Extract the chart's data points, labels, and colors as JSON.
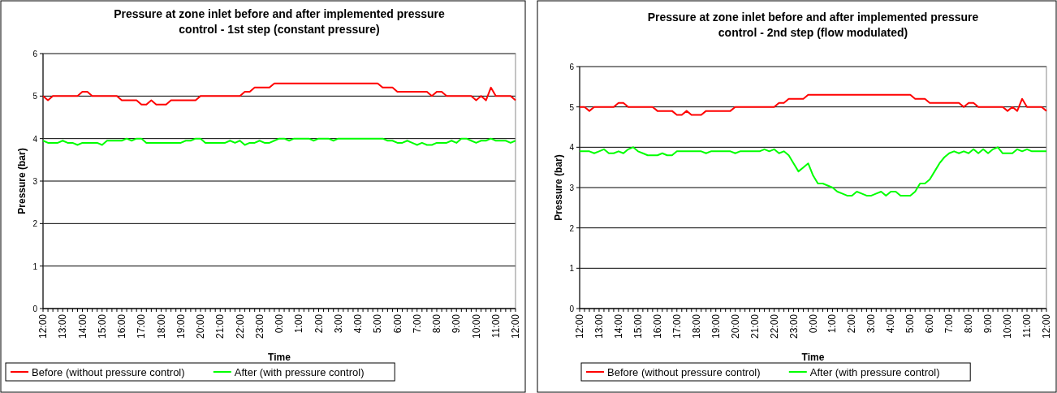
{
  "chart_data": [
    {
      "type": "line",
      "title": "Pressure at zone inlet before and after implemented pressure control - 1st step (constant pressure)",
      "xlabel": "Time",
      "ylabel": "Pressure (bar)",
      "categories": [
        "12:00",
        null,
        null,
        null,
        "13:00",
        null,
        null,
        null,
        "14:00",
        null,
        null,
        null,
        "15:00",
        null,
        null,
        null,
        "16:00",
        null,
        null,
        null,
        "17:00",
        null,
        null,
        null,
        "18:00",
        null,
        null,
        null,
        "19:00",
        null,
        null,
        null,
        "20:00",
        null,
        null,
        null,
        "21:00",
        null,
        null,
        null,
        "22:00",
        null,
        null,
        null,
        "23:00",
        null,
        null,
        null,
        "0:00",
        null,
        null,
        null,
        "1:00",
        null,
        null,
        null,
        "2:00",
        null,
        null,
        null,
        "3:00",
        null,
        null,
        null,
        "4:00",
        null,
        null,
        null,
        "5:00",
        null,
        null,
        null,
        "6:00",
        null,
        null,
        null,
        "7:00",
        null,
        null,
        null,
        "8:00",
        null,
        null,
        null,
        "9:00",
        null,
        null,
        null,
        "10:00",
        null,
        null,
        null,
        "11:00",
        null,
        null,
        null,
        "12:00"
      ],
      "series": [
        {
          "name": "Before (without pressure control)",
          "color": "#ff0000",
          "values": [
            5.0,
            4.9,
            5.0,
            5.0,
            5.0,
            5.0,
            5.0,
            5.0,
            5.1,
            5.1,
            5.0,
            5.0,
            5.0,
            5.0,
            5.0,
            5.0,
            4.9,
            4.9,
            4.9,
            4.9,
            4.8,
            4.8,
            4.9,
            4.8,
            4.8,
            4.8,
            4.9,
            4.9,
            4.9,
            4.9,
            4.9,
            4.9,
            5.0,
            5.0,
            5.0,
            5.0,
            5.0,
            5.0,
            5.0,
            5.0,
            5.0,
            5.1,
            5.1,
            5.2,
            5.2,
            5.2,
            5.2,
            5.3,
            5.3,
            5.3,
            5.3,
            5.3,
            5.3,
            5.3,
            5.3,
            5.3,
            5.3,
            5.3,
            5.3,
            5.3,
            5.3,
            5.3,
            5.3,
            5.3,
            5.3,
            5.3,
            5.3,
            5.3,
            5.3,
            5.2,
            5.2,
            5.2,
            5.1,
            5.1,
            5.1,
            5.1,
            5.1,
            5.1,
            5.1,
            5.0,
            5.1,
            5.1,
            5.0,
            5.0,
            5.0,
            5.0,
            5.0,
            5.0,
            4.9,
            5.0,
            4.9,
            5.2,
            5.0,
            5.0,
            5.0,
            5.0,
            4.9
          ]
        },
        {
          "name": "After (with pressure control)",
          "color": "#00ff00",
          "values": [
            3.95,
            3.9,
            3.9,
            3.9,
            3.95,
            3.9,
            3.9,
            3.85,
            3.9,
            3.9,
            3.9,
            3.9,
            3.85,
            3.95,
            3.95,
            3.95,
            3.95,
            4.0,
            3.95,
            4.0,
            4.0,
            3.9,
            3.9,
            3.9,
            3.9,
            3.9,
            3.9,
            3.9,
            3.9,
            3.95,
            3.95,
            4.0,
            4.0,
            3.9,
            3.9,
            3.9,
            3.9,
            3.9,
            3.95,
            3.9,
            3.95,
            3.85,
            3.9,
            3.9,
            3.95,
            3.9,
            3.9,
            3.95,
            4.0,
            4.0,
            3.95,
            4.0,
            4.0,
            4.0,
            4.0,
            3.95,
            4.0,
            4.0,
            4.0,
            3.95,
            4.0,
            4.0,
            4.0,
            4.0,
            4.0,
            4.0,
            4.0,
            4.0,
            4.0,
            4.0,
            3.95,
            3.95,
            3.9,
            3.9,
            3.95,
            3.9,
            3.85,
            3.9,
            3.85,
            3.85,
            3.9,
            3.9,
            3.9,
            3.95,
            3.9,
            4.0,
            4.0,
            3.95,
            3.9,
            3.95,
            3.95,
            4.0,
            3.95,
            3.95,
            3.95,
            3.9,
            3.95
          ]
        }
      ],
      "ylim": [
        0,
        6
      ],
      "yticks": [
        0,
        1,
        2,
        3,
        4,
        5,
        6
      ],
      "grid": "y",
      "legend": "bottom",
      "marker": "none",
      "line_style": "solid"
    },
    {
      "type": "line",
      "title": "Pressure at zone inlet before and after implemented pressure control - 2nd step (flow modulated)",
      "xlabel": "Time",
      "ylabel": "Pressure (bar)",
      "categories": [
        "12:00",
        null,
        null,
        null,
        "13:00",
        null,
        null,
        null,
        "14:00",
        null,
        null,
        null,
        "15:00",
        null,
        null,
        null,
        "16:00",
        null,
        null,
        null,
        "17:00",
        null,
        null,
        null,
        "18:00",
        null,
        null,
        null,
        "19:00",
        null,
        null,
        null,
        "20:00",
        null,
        null,
        null,
        "21:00",
        null,
        null,
        null,
        "22:00",
        null,
        null,
        null,
        "23:00",
        null,
        null,
        null,
        "0:00",
        null,
        null,
        null,
        "1:00",
        null,
        null,
        null,
        "2:00",
        null,
        null,
        null,
        "3:00",
        null,
        null,
        null,
        "4:00",
        null,
        null,
        null,
        "5:00",
        null,
        null,
        null,
        "6:00",
        null,
        null,
        null,
        "7:00",
        null,
        null,
        null,
        "8:00",
        null,
        null,
        null,
        "9:00",
        null,
        null,
        null,
        "10:00",
        null,
        null,
        null,
        "11:00",
        null,
        null,
        null,
        "12:00"
      ],
      "series": [
        {
          "name": "Before (without pressure control)",
          "color": "#ff0000",
          "values": [
            5.0,
            5.0,
            4.9,
            5.0,
            5.0,
            5.0,
            5.0,
            5.0,
            5.1,
            5.1,
            5.0,
            5.0,
            5.0,
            5.0,
            5.0,
            5.0,
            4.9,
            4.9,
            4.9,
            4.9,
            4.8,
            4.8,
            4.9,
            4.8,
            4.8,
            4.8,
            4.9,
            4.9,
            4.9,
            4.9,
            4.9,
            4.9,
            5.0,
            5.0,
            5.0,
            5.0,
            5.0,
            5.0,
            5.0,
            5.0,
            5.0,
            5.1,
            5.1,
            5.2,
            5.2,
            5.2,
            5.2,
            5.3,
            5.3,
            5.3,
            5.3,
            5.3,
            5.3,
            5.3,
            5.3,
            5.3,
            5.3,
            5.3,
            5.3,
            5.3,
            5.3,
            5.3,
            5.3,
            5.3,
            5.3,
            5.3,
            5.3,
            5.3,
            5.3,
            5.2,
            5.2,
            5.2,
            5.1,
            5.1,
            5.1,
            5.1,
            5.1,
            5.1,
            5.1,
            5.0,
            5.1,
            5.1,
            5.0,
            5.0,
            5.0,
            5.0,
            5.0,
            5.0,
            4.9,
            5.0,
            4.9,
            5.2,
            5.0,
            5.0,
            5.0,
            5.0,
            4.9
          ]
        },
        {
          "name": "After (with pressure control)",
          "color": "#00ff00",
          "values": [
            3.9,
            3.9,
            3.9,
            3.85,
            3.9,
            3.95,
            3.85,
            3.85,
            3.9,
            3.85,
            3.95,
            4.0,
            3.9,
            3.85,
            3.8,
            3.8,
            3.8,
            3.85,
            3.8,
            3.8,
            3.9,
            3.9,
            3.9,
            3.9,
            3.9,
            3.9,
            3.85,
            3.9,
            3.9,
            3.9,
            3.9,
            3.9,
            3.85,
            3.9,
            3.9,
            3.9,
            3.9,
            3.9,
            3.95,
            3.9,
            3.95,
            3.85,
            3.9,
            3.8,
            3.6,
            3.4,
            3.5,
            3.6,
            3.3,
            3.1,
            3.1,
            3.05,
            3.0,
            2.9,
            2.85,
            2.8,
            2.8,
            2.9,
            2.85,
            2.8,
            2.8,
            2.85,
            2.9,
            2.8,
            2.9,
            2.9,
            2.8,
            2.8,
            2.8,
            2.9,
            3.1,
            3.1,
            3.2,
            3.4,
            3.6,
            3.75,
            3.85,
            3.9,
            3.85,
            3.9,
            3.85,
            3.95,
            3.85,
            3.95,
            3.85,
            3.95,
            4.0,
            3.85,
            3.85,
            3.85,
            3.95,
            3.9,
            3.95,
            3.9,
            3.9,
            3.9,
            3.9
          ]
        }
      ],
      "ylim": [
        0,
        6
      ],
      "yticks": [
        0,
        1,
        2,
        3,
        4,
        5,
        6
      ],
      "grid": "y",
      "legend": "bottom",
      "marker": "none",
      "line_style": "solid"
    }
  ]
}
